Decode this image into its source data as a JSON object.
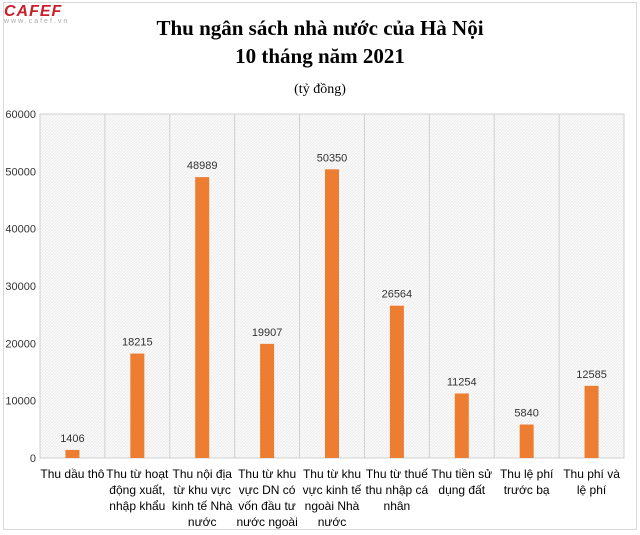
{
  "logo": {
    "brand": "CAFEF",
    "site": "www.cafef.vn"
  },
  "chart_data": {
    "type": "bar",
    "title": "Thu ngân sách nhà nước của Hà Nội",
    "title_line2": "10 tháng năm 2021",
    "subtitle": "(tỷ đồng)",
    "categories": [
      "Thu dầu thô",
      "Thu từ hoạt động xuất, nhập khẩu",
      "Thu nội địa từ khu vực kinh tế Nhà nước",
      "Thu từ khu vực DN có vốn đầu tư nước ngoài",
      "Thu từ khu vực kinh tế ngoài Nhà nước",
      "Thu từ thuế thu nhập cá nhân",
      "Thu tiền sử dụng đất",
      "Thu lệ phí trước bạ",
      "Thu phí và lệ phí"
    ],
    "values": [
      1406,
      18215,
      48989,
      19907,
      50350,
      26564,
      11254,
      5840,
      12585
    ],
    "ylim": [
      0,
      60000
    ],
    "yticks": [
      0,
      10000,
      20000,
      30000,
      40000,
      50000,
      60000
    ],
    "grid": "vertical",
    "bar_color": "#ed7d31",
    "data_labels": true
  }
}
